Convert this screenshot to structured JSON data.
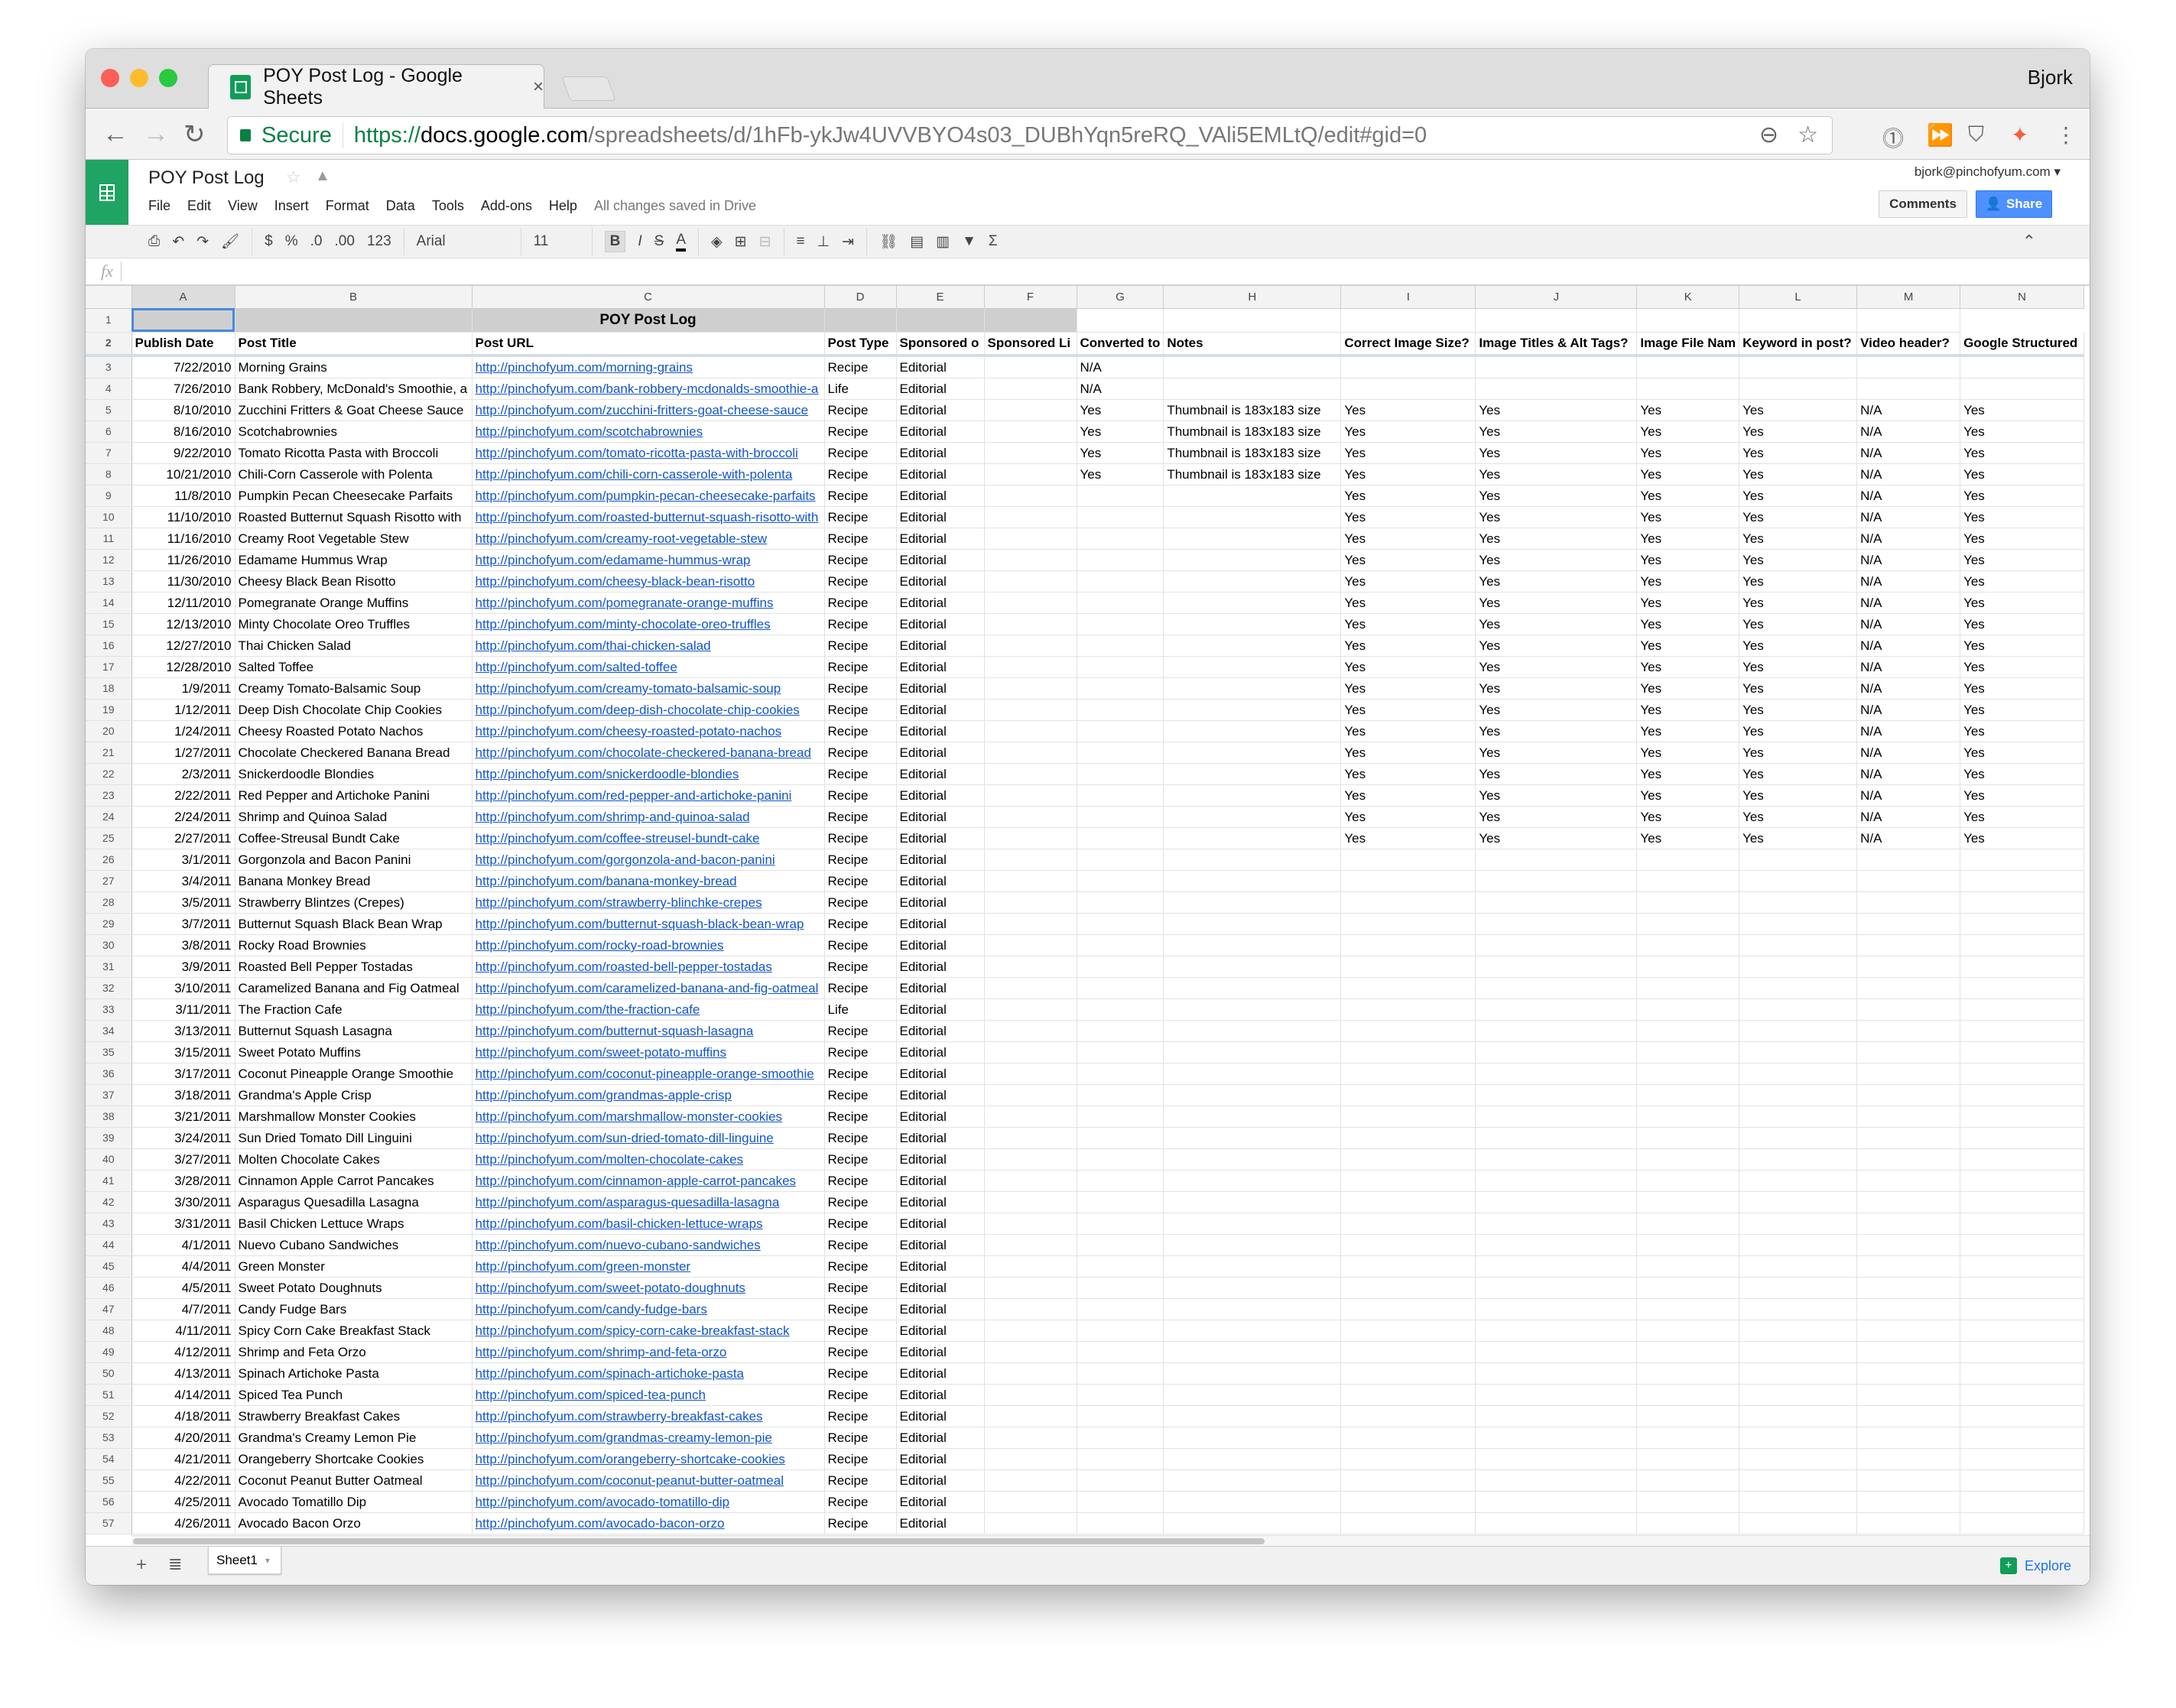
{
  "browser": {
    "tab_title": "POY Post Log - Google Sheets",
    "profile": "Bjork",
    "secure_label": "Secure",
    "url_scheme": "https://",
    "url_host": "docs.google.com",
    "url_path": "/spreadsheets/d/1hFb-ykJw4UVVBYO4s03_DUBhYqn5reRQ_VAli5EMLtQ/edit#gid=0"
  },
  "sheets": {
    "doc_title": "POY Post Log",
    "menu": [
      "File",
      "Edit",
      "View",
      "Insert",
      "Format",
      "Data",
      "Tools",
      "Add-ons",
      "Help"
    ],
    "save_status": "All changes saved in Drive",
    "account": "bjork@pinchofyum.com",
    "comments_label": "Comments",
    "share_label": "Share",
    "share_color": "#4d90fe",
    "brand_color": "#0f9d58"
  },
  "toolbar": {
    "currency": "$",
    "percent": "%",
    "decrease_decimal": ".0",
    "increase_decimal": ".00",
    "more_formats": "123",
    "font": "Arial",
    "font_size": "11",
    "bold": "B",
    "italic": "I",
    "strike": "S",
    "text_color": "A"
  },
  "formula_bar": {
    "fx": "fx",
    "value": ""
  },
  "grid": {
    "column_letters": [
      "A",
      "B",
      "C",
      "D",
      "E",
      "F",
      "G",
      "H",
      "I",
      "J",
      "K",
      "L",
      "M",
      "N"
    ],
    "title": "POY Post Log",
    "headers": [
      "Publish Date",
      "Post Title",
      "Post URL",
      "Post Type",
      "Sponsored o",
      "Sponsored Li",
      "Converted to",
      "Notes",
      "Correct Image Size?",
      "Image Titles & Alt Tags?",
      "Image File Nam",
      "Keyword in post?",
      "Video header?",
      "Google Structured"
    ],
    "rows": [
      [
        "7/22/2010",
        "Morning Grains",
        "http://pinchofyum.com/morning-grains",
        "Recipe",
        "Editorial",
        "",
        "N/A"
      ],
      [
        "7/26/2010",
        "Bank Robbery, McDonald's Smoothie, a",
        "http://pinchofyum.com/bank-robbery-mcdonalds-smoothie-a",
        "Life",
        "Editorial",
        "",
        "N/A"
      ],
      [
        "8/10/2010",
        "Zucchini Fritters & Goat Cheese Sauce",
        "http://pinchofyum.com/zucchini-fritters-goat-cheese-sauce",
        "Recipe",
        "Editorial",
        "",
        "Yes",
        "Thumbnail is 183x183 size",
        "Yes",
        "Yes",
        "Yes",
        "Yes",
        "N/A",
        "Yes"
      ],
      [
        "8/16/2010",
        "Scotchabrownies",
        "http://pinchofyum.com/scotchabrownies",
        "Recipe",
        "Editorial",
        "",
        "Yes",
        "Thumbnail is 183x183 size",
        "Yes",
        "Yes",
        "Yes",
        "Yes",
        "N/A",
        "Yes"
      ],
      [
        "9/22/2010",
        "Tomato Ricotta Pasta with Broccoli",
        "http://pinchofyum.com/tomato-ricotta-pasta-with-broccoli",
        "Recipe",
        "Editorial",
        "",
        "Yes",
        "Thumbnail is 183x183 size",
        "Yes",
        "Yes",
        "Yes",
        "Yes",
        "N/A",
        "Yes"
      ],
      [
        "10/21/2010",
        "Chili-Corn Casserole with Polenta",
        "http://pinchofyum.com/chili-corn-casserole-with-polenta",
        "Recipe",
        "Editorial",
        "",
        "Yes",
        "Thumbnail is 183x183 size",
        "Yes",
        "Yes",
        "Yes",
        "Yes",
        "N/A",
        "Yes"
      ],
      [
        "11/8/2010",
        "Pumpkin Pecan Cheesecake Parfaits",
        "http://pinchofyum.com/pumpkin-pecan-cheesecake-parfaits",
        "Recipe",
        "Editorial",
        "",
        "",
        "",
        "Yes",
        "Yes",
        "Yes",
        "Yes",
        "N/A",
        "Yes"
      ],
      [
        "11/10/2010",
        "Roasted Butternut Squash Risotto with",
        "http://pinchofyum.com/roasted-butternut-squash-risotto-with",
        "Recipe",
        "Editorial",
        "",
        "",
        "",
        "Yes",
        "Yes",
        "Yes",
        "Yes",
        "N/A",
        "Yes"
      ],
      [
        "11/16/2010",
        "Creamy Root Vegetable Stew",
        "http://pinchofyum.com/creamy-root-vegetable-stew",
        "Recipe",
        "Editorial",
        "",
        "",
        "",
        "Yes",
        "Yes",
        "Yes",
        "Yes",
        "N/A",
        "Yes"
      ],
      [
        "11/26/2010",
        "Edamame Hummus Wrap",
        "http://pinchofyum.com/edamame-hummus-wrap",
        "Recipe",
        "Editorial",
        "",
        "",
        "",
        "Yes",
        "Yes",
        "Yes",
        "Yes",
        "N/A",
        "Yes"
      ],
      [
        "11/30/2010",
        "Cheesy Black Bean Risotto",
        "http://pinchofyum.com/cheesy-black-bean-risotto",
        "Recipe",
        "Editorial",
        "",
        "",
        "",
        "Yes",
        "Yes",
        "Yes",
        "Yes",
        "N/A",
        "Yes"
      ],
      [
        "12/11/2010",
        "Pomegranate Orange Muffins",
        "http://pinchofyum.com/pomegranate-orange-muffins",
        "Recipe",
        "Editorial",
        "",
        "",
        "",
        "Yes",
        "Yes",
        "Yes",
        "Yes",
        "N/A",
        "Yes"
      ],
      [
        "12/13/2010",
        "Minty Chocolate Oreo Truffles",
        "http://pinchofyum.com/minty-chocolate-oreo-truffles",
        "Recipe",
        "Editorial",
        "",
        "",
        "",
        "Yes",
        "Yes",
        "Yes",
        "Yes",
        "N/A",
        "Yes"
      ],
      [
        "12/27/2010",
        "Thai Chicken Salad",
        "http://pinchofyum.com/thai-chicken-salad",
        "Recipe",
        "Editorial",
        "",
        "",
        "",
        "Yes",
        "Yes",
        "Yes",
        "Yes",
        "N/A",
        "Yes"
      ],
      [
        "12/28/2010",
        "Salted Toffee",
        "http://pinchofyum.com/salted-toffee",
        "Recipe",
        "Editorial",
        "",
        "",
        "",
        "Yes",
        "Yes",
        "Yes",
        "Yes",
        "N/A",
        "Yes"
      ],
      [
        "1/9/2011",
        "Creamy Tomato-Balsamic Soup",
        "http://pinchofyum.com/creamy-tomato-balsamic-soup",
        "Recipe",
        "Editorial",
        "",
        "",
        "",
        "Yes",
        "Yes",
        "Yes",
        "Yes",
        "N/A",
        "Yes"
      ],
      [
        "1/12/2011",
        "Deep Dish Chocolate Chip Cookies",
        "http://pinchofyum.com/deep-dish-chocolate-chip-cookies",
        "Recipe",
        "Editorial",
        "",
        "",
        "",
        "Yes",
        "Yes",
        "Yes",
        "Yes",
        "N/A",
        "Yes"
      ],
      [
        "1/24/2011",
        "Cheesy Roasted Potato Nachos",
        "http://pinchofyum.com/cheesy-roasted-potato-nachos",
        "Recipe",
        "Editorial",
        "",
        "",
        "",
        "Yes",
        "Yes",
        "Yes",
        "Yes",
        "N/A",
        "Yes"
      ],
      [
        "1/27/2011",
        "Chocolate Checkered Banana Bread",
        "http://pinchofyum.com/chocolate-checkered-banana-bread",
        "Recipe",
        "Editorial",
        "",
        "",
        "",
        "Yes",
        "Yes",
        "Yes",
        "Yes",
        "N/A",
        "Yes"
      ],
      [
        "2/3/2011",
        "Snickerdoodle Blondies",
        "http://pinchofyum.com/snickerdoodle-blondies",
        "Recipe",
        "Editorial",
        "",
        "",
        "",
        "Yes",
        "Yes",
        "Yes",
        "Yes",
        "N/A",
        "Yes"
      ],
      [
        "2/22/2011",
        "Red Pepper and Artichoke Panini",
        "http://pinchofyum.com/red-pepper-and-artichoke-panini",
        "Recipe",
        "Editorial",
        "",
        "",
        "",
        "Yes",
        "Yes",
        "Yes",
        "Yes",
        "N/A",
        "Yes"
      ],
      [
        "2/24/2011",
        "Shrimp and Quinoa Salad",
        "http://pinchofyum.com/shrimp-and-quinoa-salad",
        "Recipe",
        "Editorial",
        "",
        "",
        "",
        "Yes",
        "Yes",
        "Yes",
        "Yes",
        "N/A",
        "Yes"
      ],
      [
        "2/27/2011",
        "Coffee-Streusal Bundt Cake",
        "http://pinchofyum.com/coffee-streusel-bundt-cake",
        "Recipe",
        "Editorial",
        "",
        "",
        "",
        "Yes",
        "Yes",
        "Yes",
        "Yes",
        "N/A",
        "Yes"
      ],
      [
        "3/1/2011",
        "Gorgonzola and Bacon Panini",
        "http://pinchofyum.com/gorgonzola-and-bacon-panini",
        "Recipe",
        "Editorial"
      ],
      [
        "3/4/2011",
        "Banana Monkey Bread",
        "http://pinchofyum.com/banana-monkey-bread",
        "Recipe",
        "Editorial"
      ],
      [
        "3/5/2011",
        "Strawberry Blintzes (Crepes)",
        "http://pinchofyum.com/strawberry-blinchke-crepes",
        "Recipe",
        "Editorial"
      ],
      [
        "3/7/2011",
        "Butternut Squash Black Bean Wrap",
        "http://pinchofyum.com/butternut-squash-black-bean-wrap",
        "Recipe",
        "Editorial"
      ],
      [
        "3/8/2011",
        "Rocky Road Brownies",
        "http://pinchofyum.com/rocky-road-brownies",
        "Recipe",
        "Editorial"
      ],
      [
        "3/9/2011",
        "Roasted Bell Pepper Tostadas",
        "http://pinchofyum.com/roasted-bell-pepper-tostadas",
        "Recipe",
        "Editorial"
      ],
      [
        "3/10/2011",
        "Caramelized Banana and Fig Oatmeal",
        "http://pinchofyum.com/caramelized-banana-and-fig-oatmeal",
        "Recipe",
        "Editorial"
      ],
      [
        "3/11/2011",
        "The Fraction Cafe",
        "http://pinchofyum.com/the-fraction-cafe",
        "Life",
        "Editorial"
      ],
      [
        "3/13/2011",
        "Butternut Squash Lasagna",
        "http://pinchofyum.com/butternut-squash-lasagna",
        "Recipe",
        "Editorial"
      ],
      [
        "3/15/2011",
        "Sweet Potato Muffins",
        "http://pinchofyum.com/sweet-potato-muffins",
        "Recipe",
        "Editorial"
      ],
      [
        "3/17/2011",
        "Coconut Pineapple Orange Smoothie",
        "http://pinchofyum.com/coconut-pineapple-orange-smoothie",
        "Recipe",
        "Editorial"
      ],
      [
        "3/18/2011",
        "Grandma's Apple Crisp",
        "http://pinchofyum.com/grandmas-apple-crisp",
        "Recipe",
        "Editorial"
      ],
      [
        "3/21/2011",
        "Marshmallow Monster Cookies",
        "http://pinchofyum.com/marshmallow-monster-cookies",
        "Recipe",
        "Editorial"
      ],
      [
        "3/24/2011",
        "Sun Dried Tomato Dill Linguini",
        "http://pinchofyum.com/sun-dried-tomato-dill-linguine",
        "Recipe",
        "Editorial"
      ],
      [
        "3/27/2011",
        "Molten Chocolate Cakes",
        "http://pinchofyum.com/molten-chocolate-cakes",
        "Recipe",
        "Editorial"
      ],
      [
        "3/28/2011",
        "Cinnamon Apple Carrot Pancakes",
        "http://pinchofyum.com/cinnamon-apple-carrot-pancakes",
        "Recipe",
        "Editorial"
      ],
      [
        "3/30/2011",
        "Asparagus Quesadilla Lasagna",
        "http://pinchofyum.com/asparagus-quesadilla-lasagna",
        "Recipe",
        "Editorial"
      ],
      [
        "3/31/2011",
        "Basil Chicken Lettuce Wraps",
        "http://pinchofyum.com/basil-chicken-lettuce-wraps",
        "Recipe",
        "Editorial"
      ],
      [
        "4/1/2011",
        "Nuevo Cubano Sandwiches",
        "http://pinchofyum.com/nuevo-cubano-sandwiches",
        "Recipe",
        "Editorial"
      ],
      [
        "4/4/2011",
        "Green Monster",
        "http://pinchofyum.com/green-monster",
        "Recipe",
        "Editorial"
      ],
      [
        "4/5/2011",
        "Sweet Potato Doughnuts",
        "http://pinchofyum.com/sweet-potato-doughnuts",
        "Recipe",
        "Editorial"
      ],
      [
        "4/7/2011",
        "Candy Fudge Bars",
        "http://pinchofyum.com/candy-fudge-bars",
        "Recipe",
        "Editorial"
      ],
      [
        "4/11/2011",
        "Spicy Corn Cake Breakfast Stack",
        "http://pinchofyum.com/spicy-corn-cake-breakfast-stack",
        "Recipe",
        "Editorial"
      ],
      [
        "4/12/2011",
        "Shrimp and Feta Orzo",
        "http://pinchofyum.com/shrimp-and-feta-orzo",
        "Recipe",
        "Editorial"
      ],
      [
        "4/13/2011",
        "Spinach Artichoke Pasta",
        "http://pinchofyum.com/spinach-artichoke-pasta",
        "Recipe",
        "Editorial"
      ],
      [
        "4/14/2011",
        "Spiced Tea Punch",
        "http://pinchofyum.com/spiced-tea-punch",
        "Recipe",
        "Editorial"
      ],
      [
        "4/18/2011",
        "Strawberry Breakfast Cakes",
        "http://pinchofyum.com/strawberry-breakfast-cakes",
        "Recipe",
        "Editorial"
      ],
      [
        "4/20/2011",
        "Grandma's Creamy Lemon Pie",
        "http://pinchofyum.com/grandmas-creamy-lemon-pie",
        "Recipe",
        "Editorial"
      ],
      [
        "4/21/2011",
        "Orangeberry Shortcake Cookies",
        "http://pinchofyum.com/orangeberry-shortcake-cookies",
        "Recipe",
        "Editorial"
      ],
      [
        "4/22/2011",
        "Coconut Peanut Butter Oatmeal",
        "http://pinchofyum.com/coconut-peanut-butter-oatmeal",
        "Recipe",
        "Editorial"
      ],
      [
        "4/25/2011",
        "Avocado Tomatillo Dip",
        "http://pinchofyum.com/avocado-tomatillo-dip",
        "Recipe",
        "Editorial"
      ],
      [
        "4/26/2011",
        "Avocado Bacon Orzo",
        "http://pinchofyum.com/avocado-bacon-orzo",
        "Recipe",
        "Editorial"
      ]
    ]
  },
  "sheet_tabs": [
    "Sheet1"
  ],
  "explore_label": "Explore"
}
